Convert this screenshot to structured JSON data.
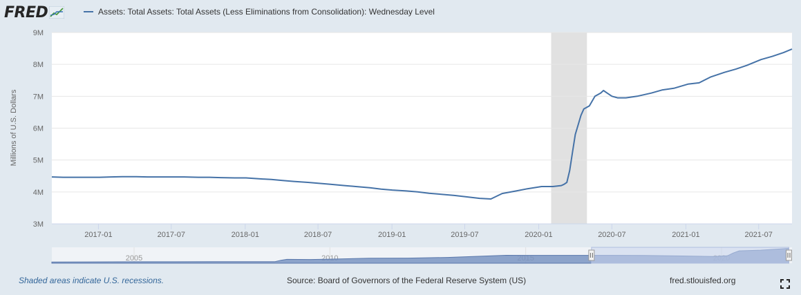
{
  "header": {
    "logo_text": "FRED",
    "legend_label": "Assets: Total Assets: Total Assets (Less Eliminations from Consolidation): Wednesday Level"
  },
  "footer": {
    "recession_note": "Shaded areas indicate U.S. recessions.",
    "source": "Source: Board of Governors of the Federal Reserve System (US)",
    "site": "fred.stlouisfed.org"
  },
  "colors": {
    "series": "#4572a7",
    "recession": "#e1e1e1",
    "navigator_fill": "#7a94c2",
    "navigator_window": "#c9d3ec"
  },
  "icons": {
    "logo": "chart-line-icon",
    "fullscreen": "expand-icon"
  },
  "chart_data": {
    "type": "line",
    "title": "",
    "xlabel": "",
    "ylabel": "Millions of U.S. Dollars",
    "ylim": [
      3000000,
      9000000
    ],
    "y_ticks": [
      {
        "value": 3000000,
        "label": "3M"
      },
      {
        "value": 4000000,
        "label": "4M"
      },
      {
        "value": 5000000,
        "label": "5M"
      },
      {
        "value": 6000000,
        "label": "6M"
      },
      {
        "value": 7000000,
        "label": "7M"
      },
      {
        "value": 8000000,
        "label": "8M"
      },
      {
        "value": 9000000,
        "label": "9M"
      }
    ],
    "xlim": [
      "2016-09-07",
      "2021-09-22"
    ],
    "x_ticks": [
      {
        "value": "2017-01-01",
        "label": "2017-01"
      },
      {
        "value": "2017-07-01",
        "label": "2017-07"
      },
      {
        "value": "2018-01-01",
        "label": "2018-01"
      },
      {
        "value": "2018-07-01",
        "label": "2018-07"
      },
      {
        "value": "2019-01-01",
        "label": "2019-01"
      },
      {
        "value": "2019-07-01",
        "label": "2019-07"
      },
      {
        "value": "2020-01-01",
        "label": "2020-01"
      },
      {
        "value": "2020-07-01",
        "label": "2020-07"
      },
      {
        "value": "2021-01-01",
        "label": "2021-01"
      },
      {
        "value": "2021-07-01",
        "label": "2021-07"
      }
    ],
    "grid": true,
    "legend_position": "top-left",
    "recessions": [
      {
        "start": "2020-02-01",
        "end": "2020-04-30"
      }
    ],
    "series": [
      {
        "x": [
          "2016-09-07",
          "2016-10-05",
          "2016-11-02",
          "2016-12-07",
          "2017-01-04",
          "2017-02-01",
          "2017-03-01",
          "2017-04-05",
          "2017-05-03",
          "2017-06-07",
          "2017-07-05",
          "2017-08-02",
          "2017-09-06",
          "2017-10-04",
          "2017-11-01",
          "2017-12-06",
          "2018-01-03",
          "2018-02-07",
          "2018-03-07",
          "2018-04-04",
          "2018-05-02",
          "2018-06-06",
          "2018-07-04",
          "2018-08-01",
          "2018-09-05",
          "2018-10-03",
          "2018-11-07",
          "2018-12-05",
          "2019-01-02",
          "2019-02-06",
          "2019-03-06",
          "2019-04-03",
          "2019-05-01",
          "2019-06-05",
          "2019-07-03",
          "2019-08-07",
          "2019-09-04",
          "2019-10-02",
          "2019-11-06",
          "2019-12-04",
          "2020-01-08",
          "2020-02-05",
          "2020-02-26",
          "2020-03-04",
          "2020-03-11",
          "2020-03-18",
          "2020-03-25",
          "2020-04-01",
          "2020-04-08",
          "2020-04-15",
          "2020-04-22",
          "2020-05-06",
          "2020-05-20",
          "2020-06-03",
          "2020-06-10",
          "2020-06-17",
          "2020-07-01",
          "2020-07-15",
          "2020-08-05",
          "2020-09-02",
          "2020-10-07",
          "2020-11-04",
          "2020-12-02",
          "2021-01-06",
          "2021-02-03",
          "2021-03-03",
          "2021-04-07",
          "2021-05-05",
          "2021-06-02",
          "2021-07-07",
          "2021-08-04",
          "2021-09-01",
          "2021-09-22"
        ],
        "values": [
          4470000,
          4460000,
          4460000,
          4460000,
          4460000,
          4470000,
          4480000,
          4480000,
          4470000,
          4470000,
          4470000,
          4470000,
          4460000,
          4460000,
          4450000,
          4440000,
          4440000,
          4410000,
          4390000,
          4360000,
          4330000,
          4300000,
          4270000,
          4240000,
          4200000,
          4170000,
          4130000,
          4090000,
          4060000,
          4030000,
          4000000,
          3960000,
          3930000,
          3890000,
          3850000,
          3800000,
          3780000,
          3950000,
          4030000,
          4100000,
          4170000,
          4170000,
          4200000,
          4240000,
          4300000,
          4670000,
          5250000,
          5800000,
          6100000,
          6400000,
          6600000,
          6700000,
          7000000,
          7100000,
          7180000,
          7120000,
          7000000,
          6950000,
          6950000,
          7000000,
          7100000,
          7200000,
          7250000,
          7380000,
          7420000,
          7600000,
          7750000,
          7850000,
          7970000,
          8150000,
          8250000,
          8370000,
          8480000
        ]
      }
    ],
    "navigator": {
      "x_ticks": [
        {
          "value": 2005,
          "label": "2005"
        },
        {
          "value": 2010,
          "label": "2010"
        },
        {
          "value": 2015,
          "label": "2015"
        },
        {
          "value": 2020,
          "label": "2020"
        }
      ],
      "xlim": [
        2002.9,
        2021.8
      ],
      "ylim": [
        0,
        9000000
      ],
      "selection": [
        2016.68,
        2021.72
      ],
      "series": [
        {
          "x": [
            2002.9,
            2005,
            2007.0,
            2008.6,
            2008.75,
            2008.9,
            2009.5,
            2010,
            2011,
            2012,
            2013,
            2014.5,
            2015,
            2016,
            2017,
            2018,
            2019,
            2019.8,
            2020.15,
            2020.3,
            2020.45,
            2021,
            2021.72
          ],
          "values": [
            720000,
            820000,
            880000,
            900000,
            1700000,
            2200000,
            2100000,
            2300000,
            2800000,
            2900000,
            3300000,
            4500000,
            4480000,
            4470000,
            4460000,
            4440000,
            4100000,
            3800000,
            4200000,
            5800000,
            7000000,
            7400000,
            8400000
          ]
        }
      ]
    }
  }
}
